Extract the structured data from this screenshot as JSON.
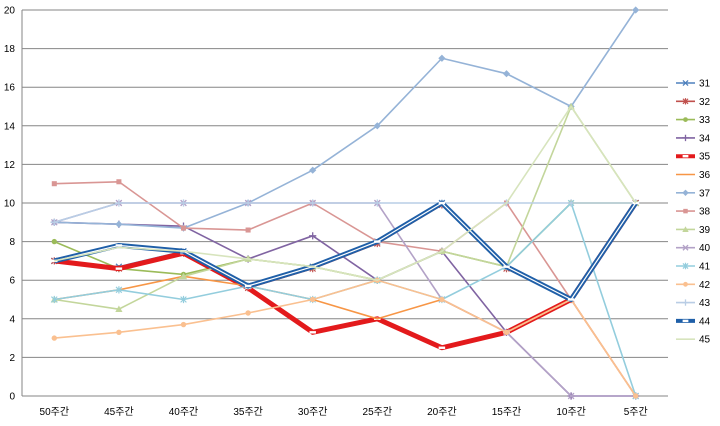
{
  "chart_data": {
    "type": "line",
    "title": "",
    "xlabel": "",
    "ylabel": "",
    "ylim": [
      0,
      20
    ],
    "yticks": [
      "0",
      "2",
      "4",
      "6",
      "8",
      "10",
      "12",
      "14",
      "16",
      "18",
      "20"
    ],
    "grid": true,
    "legend_position": "right",
    "categories": [
      "50주간",
      "45주간",
      "40주간",
      "35주간",
      "30주간",
      "25주간",
      "20주간",
      "15주간",
      "10주간",
      "5주간"
    ],
    "series": [
      {
        "name": "31",
        "color": "#4F81BD",
        "marker": "x",
        "values": [
          7,
          6.7,
          7.5,
          5.7,
          6.7,
          8,
          10,
          6.7,
          5,
          10
        ]
      },
      {
        "name": "32",
        "color": "#C0504D",
        "marker": "star",
        "values": [
          7,
          6.6,
          7.4,
          5.6,
          6.6,
          7.9,
          9.9,
          6.6,
          5,
          10
        ]
      },
      {
        "name": "33",
        "color": "#9BBB59",
        "marker": "circle",
        "values": [
          8,
          6.6,
          6.3,
          7.1,
          6.7,
          6,
          7.5,
          6.7,
          10,
          10
        ]
      },
      {
        "name": "34",
        "color": "#8064A2",
        "marker": "plus",
        "values": [
          9,
          8.9,
          8.8,
          7.1,
          8.3,
          6,
          7.5,
          3.3,
          0,
          0
        ]
      },
      {
        "name": "35",
        "color": "#E31A1C",
        "marker": "dash",
        "values": [
          7,
          6.6,
          7.4,
          5.6,
          3.3,
          4,
          2.5,
          3.3,
          5,
          10
        ]
      },
      {
        "name": "36",
        "color": "#F79646",
        "marker": "line",
        "values": [
          5,
          5.5,
          6.2,
          5.7,
          5,
          4,
          5,
          3.3,
          5,
          0
        ]
      },
      {
        "name": "37",
        "color": "#95B3D7",
        "marker": "diamond",
        "values": [
          9,
          8.9,
          8.7,
          10,
          11.7,
          14,
          17.5,
          16.7,
          15,
          20
        ]
      },
      {
        "name": "38",
        "color": "#D99694",
        "marker": "square",
        "values": [
          11,
          11.1,
          8.7,
          8.6,
          10,
          8,
          7.5,
          10,
          5,
          0
        ]
      },
      {
        "name": "39",
        "color": "#C3D69B",
        "marker": "triangle",
        "values": [
          5,
          4.5,
          6.2,
          7.1,
          6.7,
          6,
          7.5,
          6.7,
          15,
          10
        ]
      },
      {
        "name": "40",
        "color": "#B3A2C7",
        "marker": "x",
        "values": [
          9,
          10,
          10,
          10,
          10,
          10,
          5,
          3.3,
          0,
          0
        ]
      },
      {
        "name": "41",
        "color": "#93CDDD",
        "marker": "star",
        "values": [
          5,
          5.5,
          5,
          5.7,
          5,
          6,
          5,
          6.7,
          10,
          0
        ]
      },
      {
        "name": "42",
        "color": "#FAC090",
        "marker": "circle",
        "values": [
          3,
          3.3,
          3.7,
          4.3,
          5,
          6,
          5,
          3.3,
          5,
          0
        ]
      },
      {
        "name": "43",
        "color": "#B9CDE5",
        "marker": "plus",
        "values": [
          9,
          10,
          10,
          10,
          10,
          10,
          10,
          10,
          10,
          10
        ]
      },
      {
        "name": "44",
        "color": "#1F5FA8",
        "marker": "dash",
        "values": [
          7,
          7.8,
          7.5,
          5.7,
          6.7,
          8,
          10,
          6.7,
          5,
          10
        ]
      },
      {
        "name": "45",
        "color": "#D7E4BD",
        "marker": "line",
        "values": [
          7,
          7.7,
          7.5,
          7.1,
          6.7,
          6,
          7.5,
          10,
          15,
          10
        ]
      }
    ]
  }
}
